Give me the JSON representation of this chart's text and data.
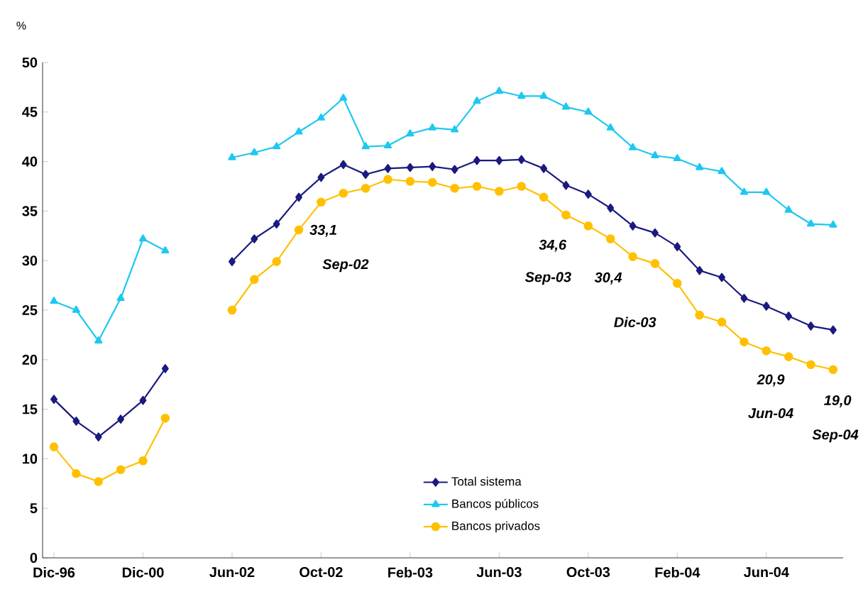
{
  "chart_data": {
    "type": "line",
    "ylabel": "%",
    "categories": [
      "Dic-96",
      null,
      null,
      null,
      "Dic-00",
      null,
      null,
      null,
      "Jun-02",
      null,
      null,
      null,
      "Oct-02",
      null,
      null,
      null,
      "Feb-03",
      null,
      null,
      null,
      "Jun-03",
      null,
      null,
      null,
      "Oct-03",
      null,
      null,
      null,
      "Feb-04",
      null,
      null,
      null,
      "Jun-04",
      null,
      null,
      null
    ],
    "series": [
      {
        "name": "Total sistema",
        "color": "#1a1a80",
        "marker": "diamond",
        "values": [
          16.0,
          13.8,
          12.2,
          14.0,
          15.9,
          19.1,
          null,
          null,
          29.9,
          32.2,
          33.7,
          36.4,
          38.4,
          39.7,
          38.7,
          39.3,
          39.4,
          39.5,
          39.2,
          40.1,
          40.1,
          40.2,
          39.3,
          37.6,
          36.7,
          35.3,
          33.5,
          32.8,
          31.4,
          29.0,
          28.3,
          26.2,
          25.4,
          24.4,
          23.4,
          23.0
        ]
      },
      {
        "name": "Bancos públicos",
        "color": "#1ec8f0",
        "marker": "triangle",
        "values": [
          25.9,
          25.0,
          21.9,
          26.2,
          32.2,
          31.0,
          null,
          null,
          40.4,
          40.9,
          41.5,
          43.0,
          44.4,
          46.4,
          41.5,
          41.6,
          42.8,
          43.4,
          43.2,
          46.1,
          47.1,
          46.6,
          46.6,
          45.5,
          45.0,
          43.4,
          41.4,
          40.6,
          40.3,
          39.4,
          39.0,
          36.9,
          36.9,
          35.1,
          33.7,
          33.6
        ]
      },
      {
        "name": "Bancos privados",
        "color": "#ffc000",
        "marker": "circle",
        "values": [
          11.2,
          8.5,
          7.7,
          8.9,
          9.8,
          14.1,
          null,
          null,
          25.0,
          28.1,
          29.9,
          33.1,
          35.9,
          36.8,
          37.3,
          38.2,
          38.0,
          37.9,
          37.3,
          37.5,
          37.0,
          37.5,
          36.4,
          34.6,
          33.5,
          32.2,
          30.4,
          29.7,
          27.7,
          24.5,
          23.8,
          21.8,
          20.9,
          20.3,
          19.5,
          19.0
        ]
      }
    ],
    "ylim": [
      0,
      50
    ],
    "yticks": [
      0,
      5,
      10,
      15,
      20,
      25,
      30,
      35,
      40,
      45,
      50
    ],
    "grid": false,
    "legend": "bottom",
    "annotations": [
      "33,1",
      "Sep-02",
      "34,6",
      "Sep-03",
      "30,4",
      "Dic-03",
      "20,9",
      "Jun-04",
      "19,0",
      "Sep-04"
    ]
  }
}
